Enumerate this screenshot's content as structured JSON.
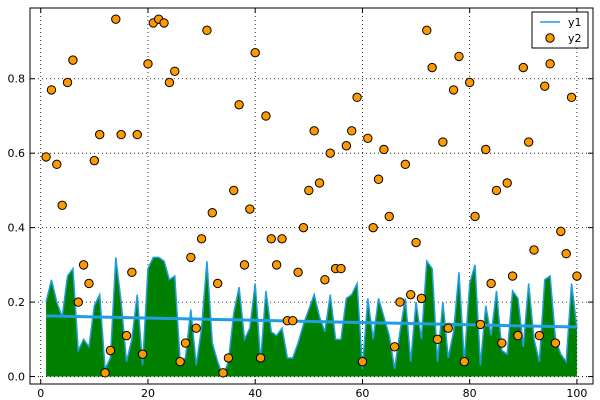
{
  "chart_data": {
    "type": "line",
    "title": "",
    "xlabel": "",
    "ylabel": "",
    "xlim": [
      -2,
      103
    ],
    "ylim": [
      -0.02,
      0.99
    ],
    "xticks": [
      0,
      20,
      40,
      60,
      80,
      100
    ],
    "xtick_labels": [
      "0",
      "20",
      "40",
      "60",
      "80",
      "100"
    ],
    "yticks": [
      0.0,
      0.2,
      0.4,
      0.6,
      0.8
    ],
    "ytick_labels": [
      "0.0",
      "0.2",
      "0.4",
      "0.6",
      "0.8"
    ],
    "grid": true,
    "legend_position": "top-right",
    "series": [
      {
        "name": "y1",
        "kind": "area-line",
        "line_color": "#1f9ee0",
        "fill_color": "#008000",
        "x": [
          1,
          2,
          3,
          4,
          5,
          6,
          7,
          8,
          9,
          10,
          11,
          12,
          13,
          14,
          15,
          16,
          17,
          18,
          19,
          20,
          21,
          22,
          23,
          24,
          25,
          26,
          27,
          28,
          29,
          30,
          31,
          32,
          33,
          34,
          35,
          36,
          37,
          38,
          39,
          40,
          41,
          42,
          43,
          44,
          45,
          46,
          47,
          48,
          49,
          50,
          51,
          52,
          53,
          54,
          55,
          56,
          57,
          58,
          59,
          60,
          61,
          62,
          63,
          64,
          65,
          66,
          67,
          68,
          69,
          70,
          71,
          72,
          73,
          74,
          75,
          76,
          77,
          78,
          79,
          80,
          81,
          82,
          83,
          84,
          85,
          86,
          87,
          88,
          89,
          90,
          91,
          92,
          93,
          94,
          95,
          96,
          97,
          98,
          99,
          100
        ],
        "y": [
          0.2,
          0.26,
          0.2,
          0.16,
          0.27,
          0.29,
          0.07,
          0.1,
          0.08,
          0.19,
          0.22,
          0.02,
          0.05,
          0.32,
          0.2,
          0.04,
          0.1,
          0.22,
          0.03,
          0.29,
          0.32,
          0.32,
          0.31,
          0.26,
          0.27,
          0.04,
          0.05,
          0.18,
          0.03,
          0.13,
          0.31,
          0.09,
          0.04,
          0.0,
          0.04,
          0.17,
          0.24,
          0.1,
          0.13,
          0.25,
          0.04,
          0.23,
          0.12,
          0.11,
          0.13,
          0.05,
          0.05,
          0.09,
          0.14,
          0.18,
          0.22,
          0.16,
          0.12,
          0.22,
          0.1,
          0.1,
          0.21,
          0.22,
          0.25,
          0.02,
          0.21,
          0.1,
          0.21,
          0.16,
          0.11,
          0.02,
          0.12,
          0.21,
          0.04,
          0.2,
          0.1,
          0.31,
          0.29,
          0.04,
          0.2,
          0.05,
          0.12,
          0.28,
          0.04,
          0.25,
          0.3,
          0.03,
          0.19,
          0.11,
          0.23,
          0.07,
          0.06,
          0.23,
          0.21,
          0.08,
          0.25,
          0.1,
          0.04,
          0.26,
          0.27,
          0.1,
          0.06,
          0.04,
          0.25,
          0.13
        ]
      },
      {
        "name": "",
        "kind": "trend-line",
        "line_color": "#1f9ee0",
        "x": [
          1,
          100
        ],
        "y": [
          0.163,
          0.133
        ]
      },
      {
        "name": "y2",
        "kind": "scatter",
        "color": "#ff9900",
        "x": [
          1,
          2,
          3,
          4,
          5,
          6,
          7,
          8,
          9,
          10,
          11,
          12,
          13,
          14,
          15,
          16,
          17,
          18,
          19,
          20,
          21,
          22,
          23,
          24,
          25,
          26,
          27,
          28,
          29,
          30,
          31,
          32,
          33,
          34,
          35,
          36,
          37,
          38,
          39,
          40,
          41,
          42,
          43,
          44,
          45,
          46,
          47,
          48,
          49,
          50,
          51,
          52,
          53,
          54,
          55,
          56,
          57,
          58,
          59,
          60,
          61,
          62,
          63,
          64,
          65,
          66,
          67,
          68,
          69,
          70,
          71,
          72,
          73,
          74,
          75,
          76,
          77,
          78,
          79,
          80,
          81,
          82,
          83,
          84,
          85,
          86,
          87,
          88,
          89,
          90,
          91,
          92,
          93,
          94,
          95,
          96,
          97,
          98,
          99,
          100
        ],
        "y": [
          0.59,
          0.77,
          0.57,
          0.46,
          0.79,
          0.85,
          0.2,
          0.3,
          0.25,
          0.58,
          0.65,
          0.01,
          0.07,
          0.96,
          0.65,
          0.11,
          0.28,
          0.65,
          0.06,
          0.84,
          0.95,
          0.96,
          0.95,
          0.79,
          0.82,
          0.04,
          0.09,
          0.32,
          0.13,
          0.37,
          0.93,
          0.44,
          0.25,
          0.01,
          0.05,
          0.5,
          0.73,
          0.3,
          0.45,
          0.87,
          0.05,
          0.7,
          0.37,
          0.3,
          0.37,
          0.15,
          0.15,
          0.28,
          0.4,
          0.5,
          0.66,
          0.52,
          0.26,
          0.6,
          0.29,
          0.29,
          0.62,
          0.66,
          0.75,
          0.04,
          0.64,
          0.4,
          0.53,
          0.61,
          0.43,
          0.08,
          0.2,
          0.57,
          0.22,
          0.36,
          0.21,
          0.93,
          0.83,
          0.1,
          0.63,
          0.13,
          0.77,
          0.86,
          0.04,
          0.79,
          0.43,
          0.14,
          0.61,
          0.25,
          0.5,
          0.09,
          0.52,
          0.27,
          0.11,
          0.83,
          0.63,
          0.34,
          0.11,
          0.78,
          0.84,
          0.09,
          0.39,
          0.33,
          0.75,
          0.27
        ]
      }
    ]
  }
}
